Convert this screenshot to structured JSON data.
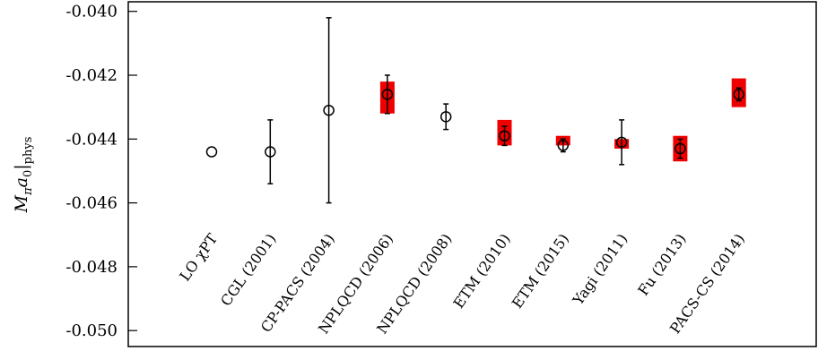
{
  "chart_data": {
    "type": "scatter",
    "ylabel": "M",
    "ylabel_parts": {
      "main": "M",
      "main_sub": "π",
      "var": "a",
      "var_sub": "0",
      "bar_sub": "phys"
    },
    "ylim": [
      -0.0505,
      -0.0397
    ],
    "yticks": [
      -0.04,
      -0.042,
      -0.044,
      -0.046,
      -0.048,
      -0.05
    ],
    "ytick_labels": [
      "-0.040",
      "-0.042",
      "-0.044",
      "-0.046",
      "-0.048",
      "-0.050"
    ],
    "categories": [
      "LO χPT",
      "CGL (2001)",
      "CP-PACS (2004)",
      "NPLQCD (2006)",
      "NPLQCD (2008)",
      "ETM (2010)",
      "ETM (2015)",
      "Yagi (2011)",
      "Fu (2013)",
      "PACS-CS (2014)"
    ],
    "points": [
      {
        "label": "LO χPT",
        "y": -0.0444,
        "err_lo": 0,
        "err_hi": 0,
        "band_lo": null,
        "band_hi": null
      },
      {
        "label": "CGL (2001)",
        "y": -0.0444,
        "err_lo": 0.001,
        "err_hi": 0.001,
        "band_lo": null,
        "band_hi": null
      },
      {
        "label": "CP-PACS (2004)",
        "y": -0.0431,
        "err_lo": 0.0029,
        "err_hi": 0.0029,
        "band_lo": null,
        "band_hi": null
      },
      {
        "label": "NPLQCD (2006)",
        "y": -0.0426,
        "err_lo": 0.0006,
        "err_hi": 0.0006,
        "band_lo": -0.0432,
        "band_hi": -0.0422
      },
      {
        "label": "NPLQCD (2008)",
        "y": -0.0433,
        "err_lo": 0.0004,
        "err_hi": 0.0004,
        "band_lo": null,
        "band_hi": null
      },
      {
        "label": "ETM (2010)",
        "y": -0.0439,
        "err_lo": 0.0003,
        "err_hi": 0.0003,
        "band_lo": -0.0442,
        "band_hi": -0.0434
      },
      {
        "label": "ETM (2015)",
        "y": -0.0442,
        "err_lo": 0.0002,
        "err_hi": 0.0002,
        "band_lo": -0.0442,
        "band_hi": -0.0439
      },
      {
        "label": "Yagi (2011)",
        "y": -0.0441,
        "err_lo": 0.0007,
        "err_hi": 0.0007,
        "band_lo": -0.0443,
        "band_hi": -0.044
      },
      {
        "label": "Fu (2013)",
        "y": -0.0443,
        "err_lo": 0.0003,
        "err_hi": 0.0003,
        "band_lo": -0.0447,
        "band_hi": -0.0439
      },
      {
        "label": "PACS-CS (2014)",
        "y": -0.0426,
        "err_lo": 0.0002,
        "err_hi": 0.0002,
        "band_lo": -0.043,
        "band_hi": -0.0421
      }
    ],
    "colors": {
      "band": "#ee0000",
      "marker": "#000000"
    },
    "grid": false,
    "legend": "none"
  }
}
